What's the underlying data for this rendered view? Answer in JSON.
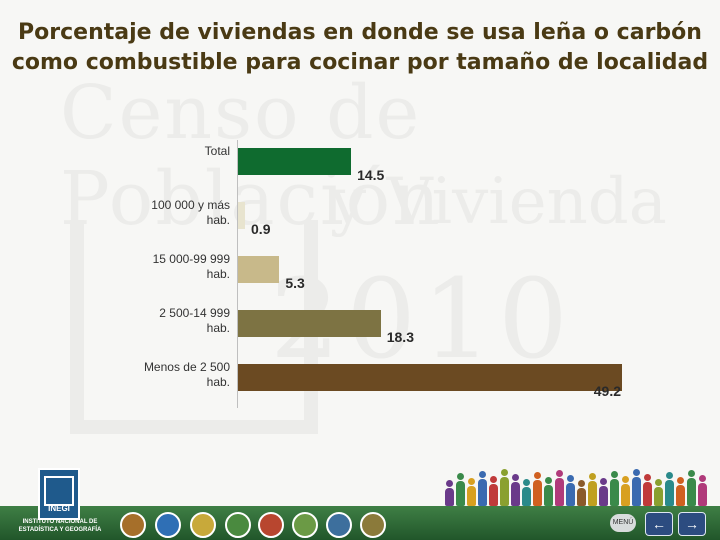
{
  "title_line1": "Porcentaje de viviendas en donde se usa leña o carbón",
  "title_line2": "como combustible para cocinar por tamaño de localidad",
  "watermark": {
    "line1": "Censo de Población",
    "line2": "y Vivienda",
    "line3": "2010"
  },
  "chart_data": {
    "type": "bar",
    "orientation": "horizontal",
    "title": "Porcentaje de viviendas en donde se usa leña o carbón como combustible para cocinar por tamaño de localidad",
    "categories": [
      "Total",
      "100 000 y más\nhab.",
      "15 000-99 999\nhab.",
      "2 500-14 999\nhab.",
      "Menos de 2 500\nhab."
    ],
    "values": [
      14.5,
      0.9,
      5.3,
      18.3,
      49.2
    ],
    "value_labels": [
      "14.5",
      "0.9",
      "5.3",
      "18.3",
      "49.2"
    ],
    "colors": [
      "#0f6b2f",
      "#e8e4cf",
      "#c8b98a",
      "#7d7343",
      "#6b4a22"
    ],
    "xlim": [
      0,
      50
    ],
    "grid": false,
    "legend": "none"
  },
  "footer": {
    "logo_text": "INEGI",
    "institution": "INSTITUTO NACIONAL DE ESTADÍSTICA Y GEOGRAFÍA",
    "menu_label": "MENÚ",
    "back_icon": "arrow-left-icon",
    "forward_icon": "arrow-right-icon"
  }
}
